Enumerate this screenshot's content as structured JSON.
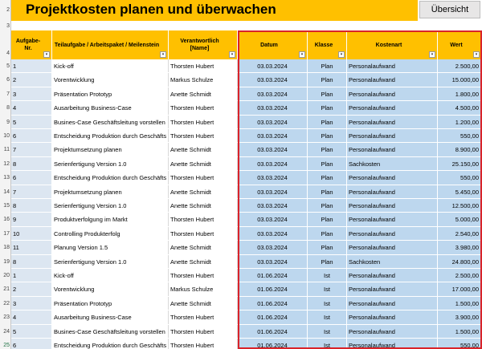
{
  "header": {
    "title": "Projektkosten planen und überwachen",
    "overview_button": "Übersicht"
  },
  "row_numbers": [
    "2",
    "3",
    "4",
    "5",
    "6",
    "7",
    "8",
    "9",
    "10",
    "11",
    "12",
    "13",
    "14",
    "15",
    "16",
    "17",
    "18",
    "19",
    "20",
    "21",
    "22",
    "23",
    "24",
    "25"
  ],
  "columns": [
    {
      "label": "Aufgabe-Nr."
    },
    {
      "label": "Teilaufgabe / Arbeitspaket / Meilenstein"
    },
    {
      "label": "Verantwortlich [Name]"
    },
    {
      "label": "Datum"
    },
    {
      "label": "Klasse"
    },
    {
      "label": "Kostenart"
    },
    {
      "label": "Wert"
    }
  ],
  "filter_icon": "dropdown-arrow",
  "rows": [
    {
      "nr": "1",
      "task": "Kick-off",
      "resp": "Thorsten Hubert",
      "date": "03.03.2024",
      "class": "Plan",
      "cost": "Personalaufwand",
      "value": "2.500,00"
    },
    {
      "nr": "2",
      "task": "Vorentwicklung",
      "resp": "Markus Schulze",
      "date": "03.03.2024",
      "class": "Plan",
      "cost": "Personalaufwand",
      "value": "15.000,00"
    },
    {
      "nr": "3",
      "task": "Präsentation Prototyp",
      "resp": "Anette Schmidt",
      "date": "03.03.2024",
      "class": "Plan",
      "cost": "Personalaufwand",
      "value": "1.800,00"
    },
    {
      "nr": "4",
      "task": "Ausarbeitung Business-Case",
      "resp": "Thorsten Hubert",
      "date": "03.03.2024",
      "class": "Plan",
      "cost": "Personalaufwand",
      "value": "4.500,00"
    },
    {
      "nr": "5",
      "task": "Busines-Case Geschäftsleitung vorstellen",
      "resp": "Thorsten Hubert",
      "date": "03.03.2024",
      "class": "Plan",
      "cost": "Personalaufwand",
      "value": "1.200,00"
    },
    {
      "nr": "6",
      "task": "Entscheidung Produktion durch Geschäfts",
      "resp": "Thorsten Hubert",
      "date": "03.03.2024",
      "class": "Plan",
      "cost": "Personalaufwand",
      "value": "550,00"
    },
    {
      "nr": "7",
      "task": "Projektumsetzung planen",
      "resp": "Anette Schmidt",
      "date": "03.03.2024",
      "class": "Plan",
      "cost": "Personalaufwand",
      "value": "8.900,00"
    },
    {
      "nr": "8",
      "task": "Serienfertigung Version 1.0",
      "resp": "Anette Schmidt",
      "date": "03.03.2024",
      "class": "Plan",
      "cost": "Sachkosten",
      "value": "25.150,00"
    },
    {
      "nr": "6",
      "task": "Entscheidung Produktion durch Geschäfts",
      "resp": "Thorsten Hubert",
      "date": "03.03.2024",
      "class": "Plan",
      "cost": "Personalaufwand",
      "value": "550,00"
    },
    {
      "nr": "7",
      "task": "Projektumsetzung planen",
      "resp": "Anette Schmidt",
      "date": "03.03.2024",
      "class": "Plan",
      "cost": "Personalaufwand",
      "value": "5.450,00"
    },
    {
      "nr": "8",
      "task": "Serienfertigung Version 1.0",
      "resp": "Anette Schmidt",
      "date": "03.03.2024",
      "class": "Plan",
      "cost": "Personalaufwand",
      "value": "12.500,00"
    },
    {
      "nr": "9",
      "task": "Produktverfolgung im Markt",
      "resp": "Thorsten Hubert",
      "date": "03.03.2024",
      "class": "Plan",
      "cost": "Personalaufwand",
      "value": "5.000,00"
    },
    {
      "nr": "10",
      "task": "Controlling Produkterfolg",
      "resp": "Thorsten Hubert",
      "date": "03.03.2024",
      "class": "Plan",
      "cost": "Personalaufwand",
      "value": "2.540,00"
    },
    {
      "nr": "11",
      "task": "Planung Version 1.5",
      "resp": "Anette Schmidt",
      "date": "03.03.2024",
      "class": "Plan",
      "cost": "Personalaufwand",
      "value": "3.980,00"
    },
    {
      "nr": "8",
      "task": "Serienfertigung Version 1.0",
      "resp": "Anette Schmidt",
      "date": "03.03.2024",
      "class": "Plan",
      "cost": "Sachkosten",
      "value": "24.800,00"
    },
    {
      "nr": "1",
      "task": "Kick-off",
      "resp": "Thorsten Hubert",
      "date": "01.06.2024",
      "class": "Ist",
      "cost": "Personalaufwand",
      "value": "2.500,00"
    },
    {
      "nr": "2",
      "task": "Vorentwicklung",
      "resp": "Markus Schulze",
      "date": "01.06.2024",
      "class": "Ist",
      "cost": "Personalaufwand",
      "value": "17.000,00"
    },
    {
      "nr": "3",
      "task": "Präsentation Prototyp",
      "resp": "Anette Schmidt",
      "date": "01.06.2024",
      "class": "Ist",
      "cost": "Personalaufwand",
      "value": "1.500,00"
    },
    {
      "nr": "4",
      "task": "Ausarbeitung Business-Case",
      "resp": "Thorsten Hubert",
      "date": "01.06.2024",
      "class": "Ist",
      "cost": "Personalaufwand",
      "value": "3.900,00"
    },
    {
      "nr": "5",
      "task": "Busines-Case Geschäftsleitung vorstellen",
      "resp": "Thorsten Hubert",
      "date": "01.06.2024",
      "class": "Ist",
      "cost": "Personalaufwand",
      "value": "1.500,00"
    },
    {
      "nr": "6",
      "task": "Entscheidung Produktion durch Geschäfts",
      "resp": "Thorsten Hubert",
      "date": "01.06.2024",
      "class": "Ist",
      "cost": "Personalaufwand",
      "value": "550,00"
    }
  ]
}
